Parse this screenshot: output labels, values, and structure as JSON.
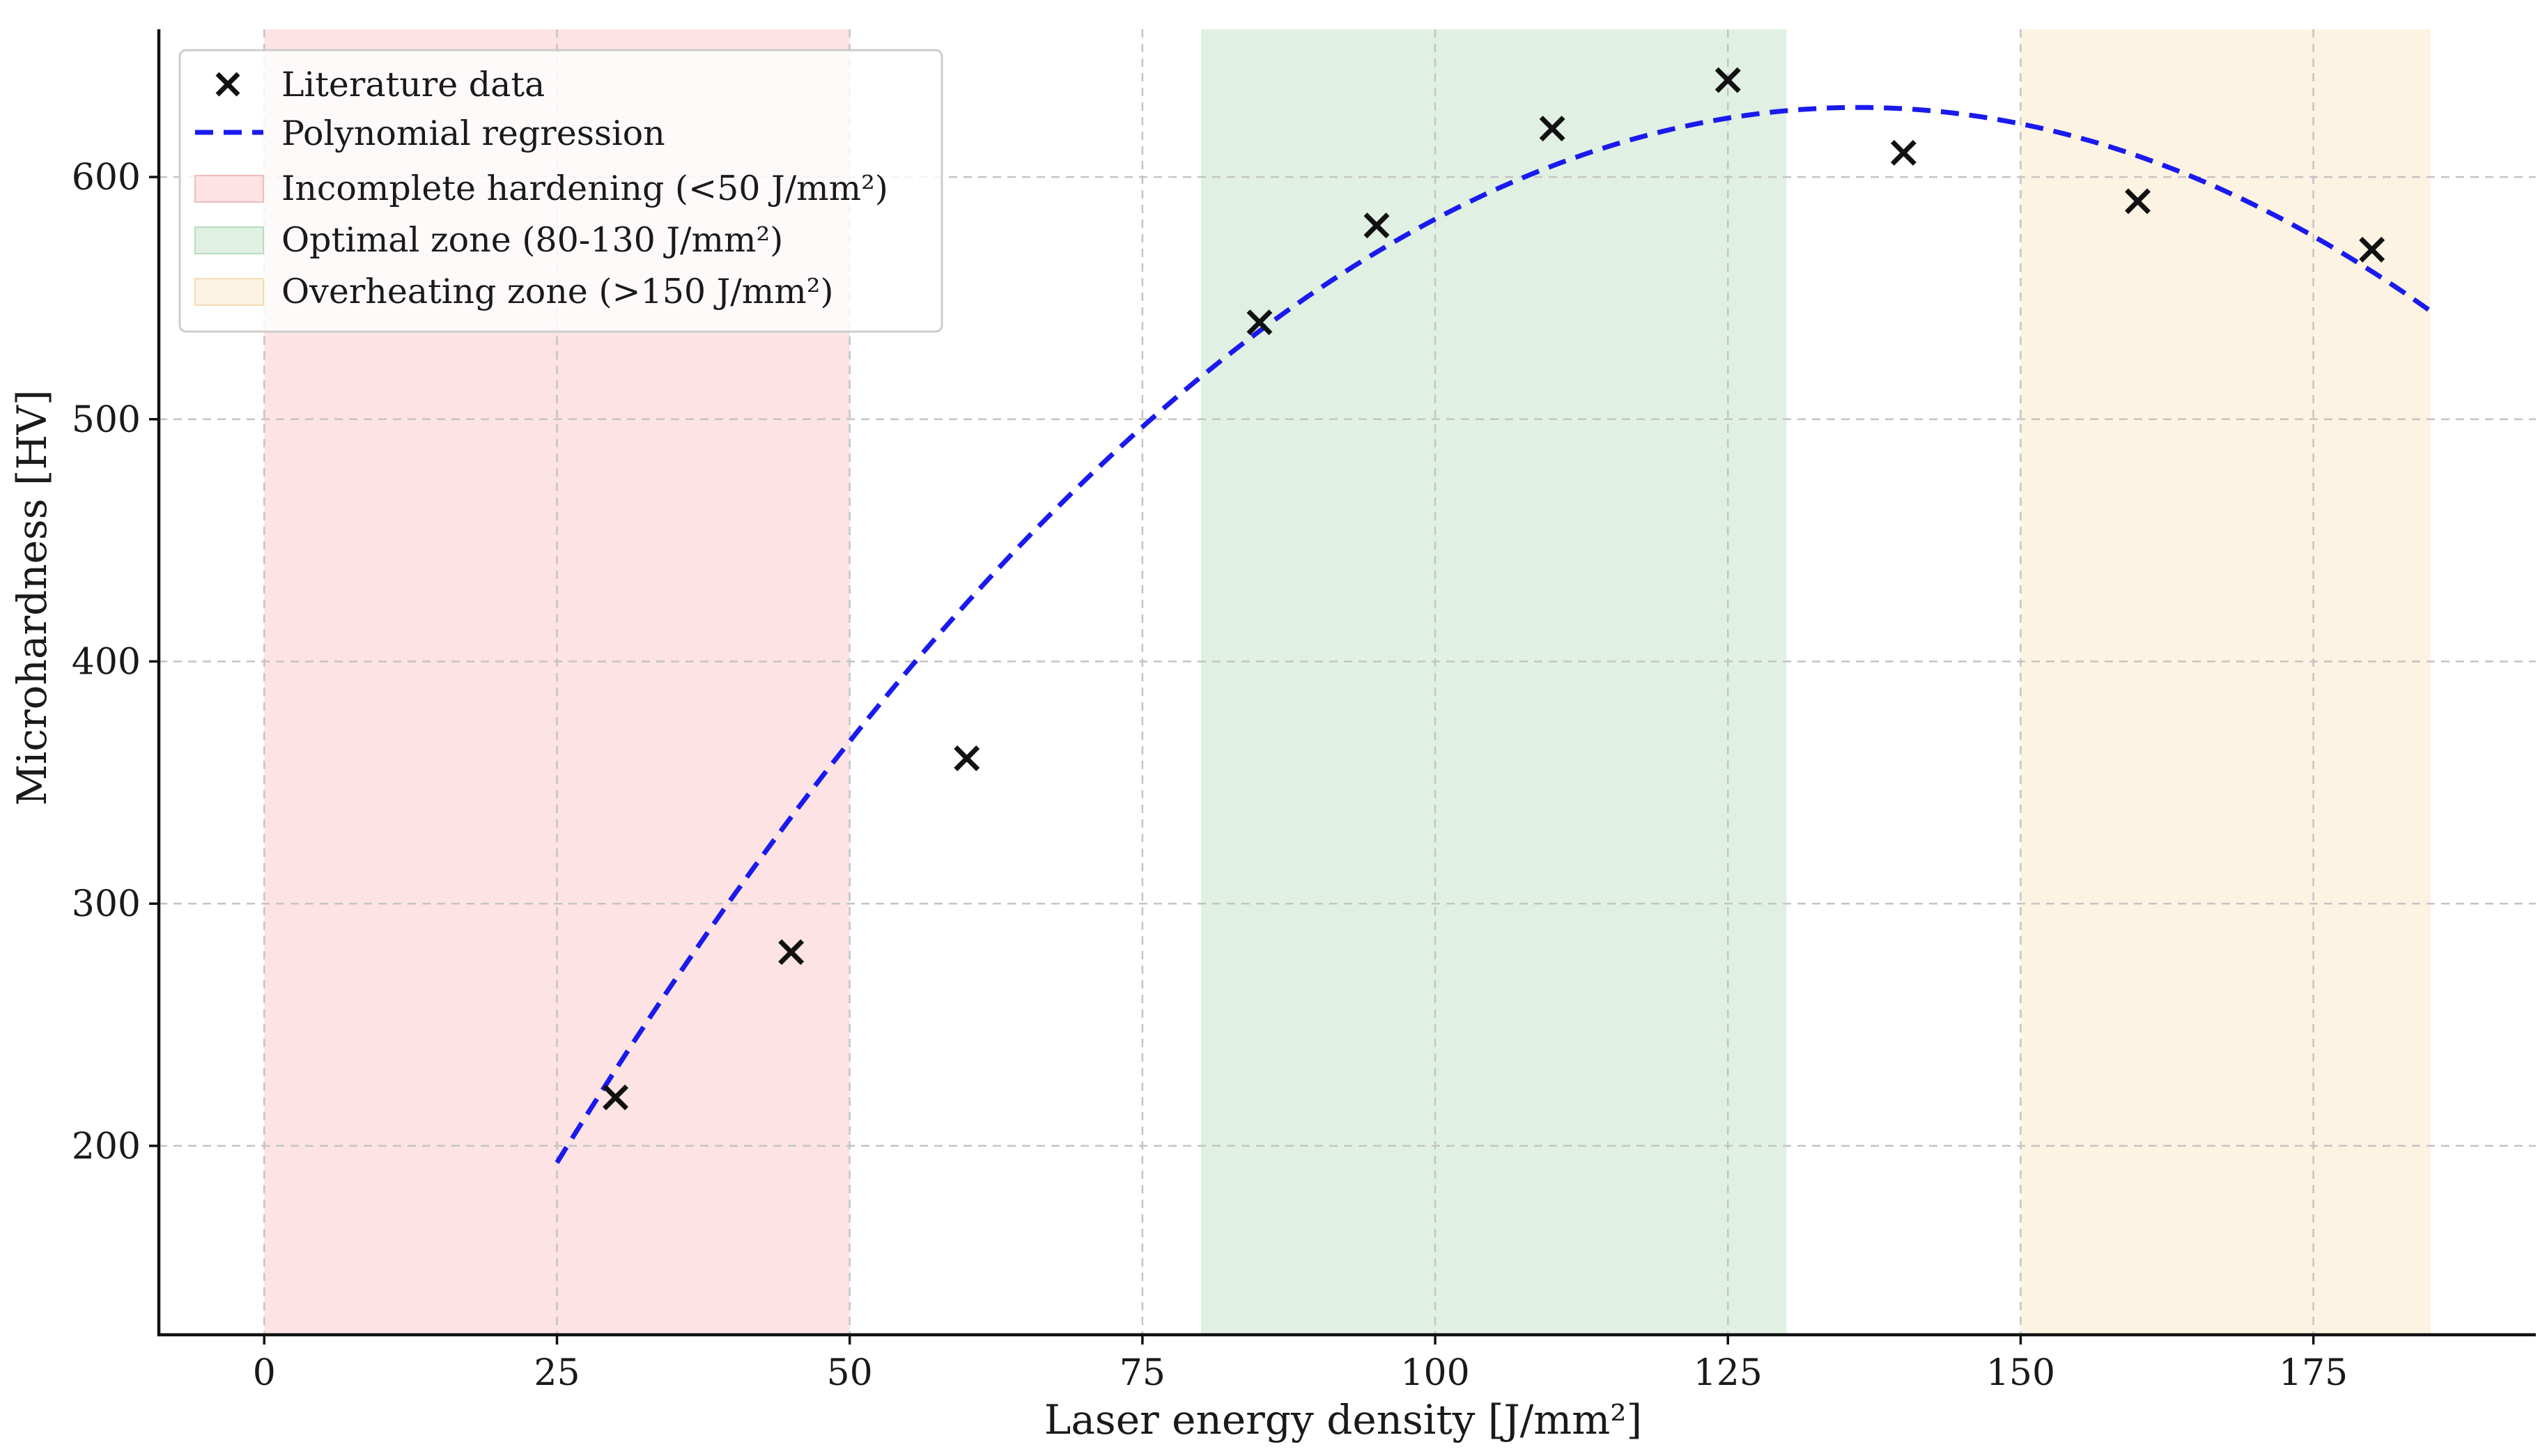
{
  "chart_data": {
    "type": "scatter",
    "title": "",
    "xlabel": "Laser energy density [J/mm²]",
    "ylabel": "Microhardness [HV]",
    "xlim": [
      -9,
      194
    ],
    "ylim": [
      122,
      661
    ],
    "xticks": [
      0,
      25,
      50,
      75,
      100,
      125,
      150,
      175
    ],
    "yticks": [
      200,
      300,
      400,
      500,
      600
    ],
    "grid": true,
    "legend_position": "top-left",
    "series": [
      {
        "name": "Literature data",
        "kind": "scatter",
        "marker": "x",
        "color": "#000000",
        "x": [
          30,
          45,
          60,
          85,
          95,
          110,
          125,
          140,
          160,
          180
        ],
        "y": [
          220,
          280,
          360,
          540,
          580,
          620,
          640,
          610,
          590,
          570
        ]
      },
      {
        "name": "Polynomial regression",
        "kind": "line",
        "style": "dashed",
        "color": "#1a1aee",
        "x_range": [
          25,
          185
        ],
        "coefficients": {
          "a": -0.03525,
          "b": 9.6,
          "c": -24.9
        }
      }
    ],
    "zones": [
      {
        "name": "Incomplete hardening (<50 J/mm²)",
        "x_start": 0,
        "x_end": 50,
        "color": "#fde3e3"
      },
      {
        "name": "Optimal zone (80-130 J/mm²)",
        "x_start": 80,
        "x_end": 130,
        "color": "#e0f1e3"
      },
      {
        "name": "Overheating zone (>150 J/mm²)",
        "x_start": 150,
        "x_end": 185,
        "color": "#fdf3e2"
      }
    ],
    "legend": [
      {
        "label": "Literature data",
        "symbol": "x-marker"
      },
      {
        "label": "Polynomial  regression",
        "symbol": "dashed-line"
      },
      {
        "label": "Incomplete hardening (<50 J/mm²)",
        "symbol": "patch-red"
      },
      {
        "label": "Optimal zone  (80-130 J/mm²)",
        "symbol": "patch-green"
      },
      {
        "label": "Overheating zone (>150 J/mm²)",
        "symbol": "patch-orange"
      }
    ]
  }
}
